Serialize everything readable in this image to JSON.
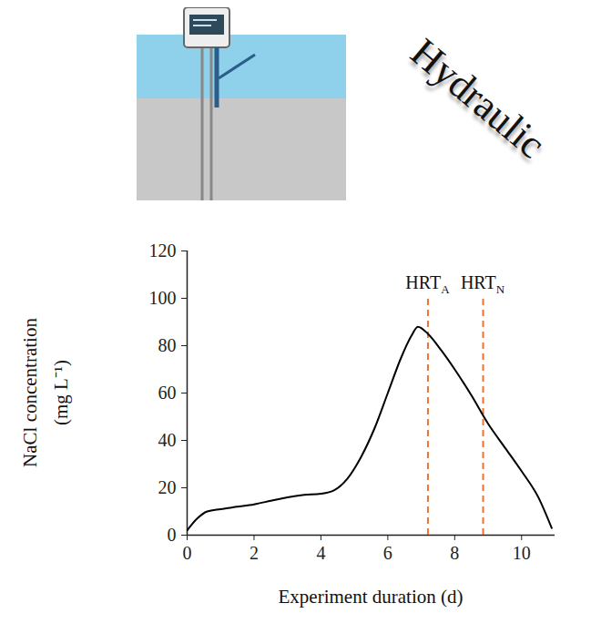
{
  "chart_data": {
    "type": "line",
    "title": "Hydraulic",
    "x_label": "Experiment duration (d)",
    "y_label": "NaCl concentration (mg L⁻¹)",
    "x": [
      0,
      0.3,
      0.6,
      1,
      1.5,
      2,
      2.5,
      3,
      3.5,
      4,
      4.4,
      4.8,
      5.2,
      5.6,
      6,
      6.4,
      6.7,
      6.9,
      7.2,
      7.6,
      8,
      8.5,
      9,
      9.5,
      10,
      10.5,
      10.9
    ],
    "values": [
      2,
      7,
      10,
      11,
      12,
      13,
      14.5,
      16,
      17,
      17.5,
      19,
      24,
      33,
      45,
      60,
      75,
      84,
      88,
      85,
      78,
      70,
      59,
      47,
      37,
      27,
      16,
      3
    ],
    "color": "#000000",
    "xlim": [
      0,
      11
    ],
    "xticks": [
      0,
      2,
      4,
      6,
      8,
      10
    ],
    "ylim": [
      0,
      120
    ],
    "yticks": [
      0,
      20,
      40,
      60,
      80,
      100,
      120
    ],
    "grid": false,
    "annotations": [
      {
        "x": 7.2,
        "text": "HRT",
        "subscript": "A",
        "color": "#e8743b",
        "line_style": "dashed"
      },
      {
        "x": 8.85,
        "text": "HRT",
        "subscript": "N",
        "color": "#e8743b",
        "line_style": "dashed"
      }
    ]
  }
}
